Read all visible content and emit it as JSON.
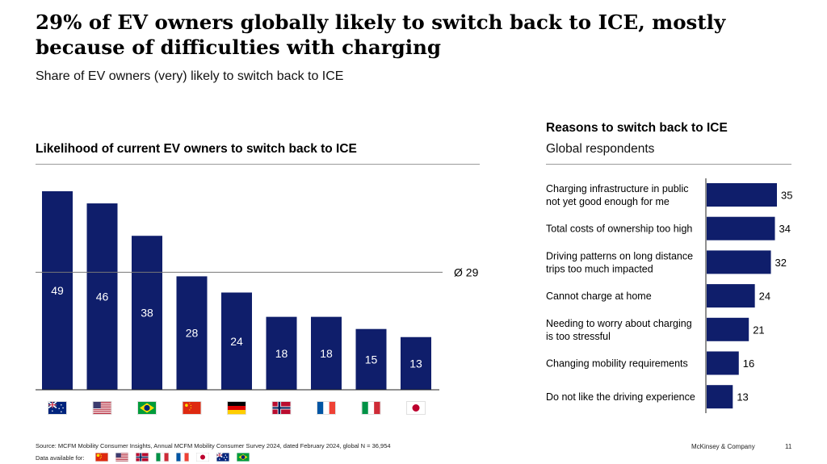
{
  "header": {
    "title": "29% of EV owners globally likely to switch back to ICE, mostly because of difficulties with charging",
    "subtitle": "Share of EV owners (very) likely to switch back to ICE"
  },
  "chart_data": [
    {
      "type": "bar",
      "title": "Likelihood of current EV owners to switch back to ICE",
      "categories": [
        "Australia",
        "United States",
        "Brazil",
        "China",
        "Germany",
        "Norway",
        "France",
        "Italy",
        "Japan"
      ],
      "category_icons": [
        "flag-australia",
        "flag-usa",
        "flag-brazil",
        "flag-china",
        "flag-germany",
        "flag-norway",
        "flag-france",
        "flag-italy",
        "flag-japan"
      ],
      "values": [
        49,
        46,
        38,
        28,
        24,
        18,
        18,
        15,
        13
      ],
      "average": {
        "label": "Ø 29",
        "value": 29
      },
      "ylim": [
        0,
        50
      ],
      "bar_color": "#0f1e6b",
      "grid": false
    },
    {
      "type": "bar",
      "orientation": "horizontal",
      "title": "Reasons to switch back to ICE",
      "subtitle": "Global respondents",
      "categories": [
        "Charging infrastructure in public\nnot yet good enough for me",
        "Total costs of ownership too high",
        "Driving patterns on long distance\ntrips too much impacted",
        "Cannot charge at home",
        "Needing to worry about charging\nis too stressful",
        "Changing mobility requirements",
        "Do not like the driving experience"
      ],
      "values": [
        35,
        34,
        32,
        24,
        21,
        16,
        13
      ],
      "xlim": [
        0,
        35
      ],
      "bar_color": "#0f1e6b",
      "grid": false
    }
  ],
  "footer": {
    "source": "Source: MCFM Mobility Consumer Insights, Annual MCFM Mobility Consumer Survey 2024, dated February 2024, global N = 36,954",
    "data_available_label": "Data available for:",
    "data_available_flags": [
      "flag-china",
      "flag-usa",
      "flag-norway",
      "flag-italy",
      "flag-france",
      "flag-japan",
      "flag-australia",
      "flag-brazil"
    ],
    "brand": "McKinsey & Company",
    "page_number": "11"
  },
  "colors": {
    "bar": "#0f1e6b",
    "text": "#000000",
    "rule": "#9a9a9a"
  }
}
